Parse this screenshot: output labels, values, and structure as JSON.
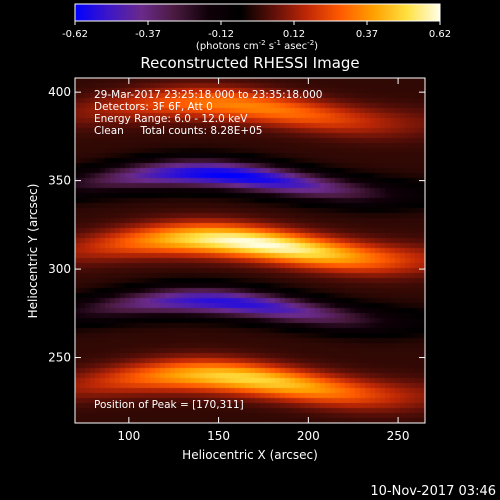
{
  "colorbar": {
    "ticks": [
      "-0.62",
      "-0.37",
      "-0.12",
      "0.12",
      "0.37",
      "0.62"
    ],
    "unit_label_parts": [
      "(photons cm",
      "-2",
      " s",
      "-1",
      " asec",
      "-2",
      ")"
    ],
    "stops": [
      "#0000ff",
      "#3c16c8",
      "#6a2a8a",
      "#4a1a40",
      "#100008",
      "#000000",
      "#601008",
      "#c02806",
      "#ff5a00",
      "#ffa000",
      "#ffe040",
      "#ffffe8"
    ]
  },
  "footer": {
    "timestamp": "10-Nov-2017 03:46"
  },
  "chart_data": {
    "type": "heatmap",
    "title": "Reconstructed RHESSI Image",
    "xlabel": "Heliocentric X (arcsec)",
    "ylabel": "Heliocentric Y (arcsec)",
    "xlim": [
      70,
      265
    ],
    "ylim": [
      213,
      408
    ],
    "x_ticks": [
      100,
      150,
      200,
      250
    ],
    "y_ticks": [
      250,
      300,
      350,
      400
    ],
    "value_range": [
      -0.62,
      0.62
    ],
    "annotations": [
      "29-Mar-2017 23:25:18.000 to 23:35:18.000",
      "Detectors: 3F 6F, Att 0",
      "Energy Range: 6.0 - 12.0 keV",
      "Clean     Total counts: 8.28E+05",
      "Position of Peak = [170,311]"
    ],
    "peak": [
      170,
      311
    ],
    "bands": [
      {
        "y": 388,
        "amplitude": 0.35,
        "x_center": 165,
        "y_width": 9
      },
      {
        "y": 348,
        "amplitude": -0.62,
        "x_center": 155,
        "y_width": 8
      },
      {
        "y": 311,
        "amplitude": 0.62,
        "x_center": 170,
        "y_width": 9
      },
      {
        "y": 276,
        "amplitude": -0.55,
        "x_center": 155,
        "y_width": 8
      },
      {
        "y": 234,
        "amplitude": 0.5,
        "x_center": 165,
        "y_width": 9
      }
    ]
  }
}
